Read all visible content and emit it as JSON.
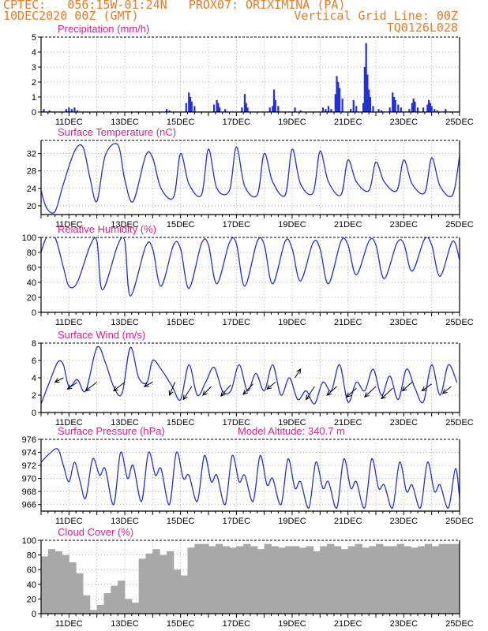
{
  "header": {
    "line1": "CPTEC:   056:15W-01:24N   PROX07: ORIXIMINA (PA)",
    "line2_left": "10DEC2020 00Z (GMT)",
    "line2_right": "Vertical Grid Line: 00Z",
    "line3_right": "TQ0126L028"
  },
  "colors": {
    "header": "#f07820",
    "title": "#e0208a",
    "line": "#2030e0",
    "bar": "#2030e0",
    "cloud": "#a8a8a8",
    "wind_vector": "#000000"
  },
  "x_tick_labels": [
    "11DEC",
    "13DEC",
    "15DEC",
    "17DEC",
    "19DEC",
    "21DEC",
    "23DEC",
    "25DEC"
  ],
  "chart_data": [
    {
      "type": "bar",
      "title": "Precipitation (mm/h)",
      "x_range_days": [
        10,
        25
      ],
      "ylim": [
        0,
        5
      ],
      "yticks": [
        0,
        1,
        2,
        3,
        4,
        5
      ],
      "x": [
        10.1,
        10.3,
        10.9,
        11.0,
        11.1,
        11.2,
        11.3,
        14.5,
        14.6,
        15.2,
        15.3,
        15.35,
        15.4,
        15.5,
        16.2,
        16.3,
        16.35,
        16.4,
        16.6,
        17.2,
        17.3,
        17.35,
        17.4,
        18.2,
        18.3,
        18.35,
        18.4,
        18.5,
        19.1,
        19.3,
        20.1,
        20.2,
        20.3,
        20.4,
        20.55,
        20.6,
        20.65,
        20.7,
        20.8,
        21.1,
        21.2,
        21.3,
        21.55,
        21.6,
        21.65,
        21.7,
        21.75,
        21.8,
        21.9,
        22.1,
        22.2,
        22.5,
        22.6,
        22.65,
        22.7,
        22.8,
        22.9,
        23.2,
        23.3,
        23.35,
        23.4,
        23.5,
        23.7,
        23.85,
        23.9,
        23.95,
        24.0,
        24.1,
        24.2,
        24.5
      ],
      "values": [
        0.2,
        0.1,
        0.2,
        0.3,
        0.2,
        0.3,
        0.1,
        0.2,
        0.1,
        0.6,
        1.3,
        1.0,
        0.7,
        0.4,
        0.5,
        0.8,
        0.6,
        0.3,
        0.2,
        0.3,
        1.2,
        0.6,
        0.3,
        0.3,
        0.4,
        1.5,
        0.8,
        0.4,
        0.3,
        0.1,
        0.3,
        0.2,
        0.4,
        0.2,
        1.2,
        2.4,
        2.0,
        1.6,
        0.9,
        0.2,
        0.8,
        0.4,
        0.6,
        3.0,
        4.6,
        2.5,
        1.5,
        1.0,
        0.4,
        0.2,
        0.1,
        0.3,
        1.3,
        1.0,
        0.8,
        0.5,
        0.3,
        0.2,
        0.6,
        0.9,
        0.7,
        0.3,
        0.3,
        0.5,
        0.8,
        0.6,
        0.4,
        0.2,
        0.1,
        0.2
      ]
    },
    {
      "type": "line",
      "title": "Surface Temperature (nC)",
      "x_range_days": [
        10,
        25
      ],
      "ylim": [
        18,
        35
      ],
      "yticks": [
        20,
        24,
        28,
        32
      ],
      "x": [
        10.0,
        10.2,
        10.5,
        10.8,
        11.2,
        11.5,
        11.75,
        12.0,
        12.3,
        12.75,
        13.0,
        13.3,
        13.75,
        14.0,
        14.3,
        14.75,
        15.0,
        15.3,
        15.75,
        16.0,
        16.3,
        16.75,
        17.0,
        17.3,
        17.75,
        18.0,
        18.3,
        18.75,
        19.0,
        19.3,
        19.75,
        20.0,
        20.3,
        20.75,
        21.0,
        21.3,
        21.75,
        22.0,
        22.3,
        22.75,
        23.0,
        23.3,
        23.75,
        24.0,
        24.3,
        24.75,
        25.0
      ],
      "values": [
        23.5,
        19.5,
        18.7,
        25.0,
        32.5,
        33.5,
        26.5,
        21.0,
        31.5,
        34.0,
        26.0,
        21.0,
        31.5,
        31.0,
        24.0,
        22.0,
        32.0,
        25.0,
        22.5,
        33.0,
        24.0,
        23.5,
        33.5,
        24.5,
        22.5,
        32.0,
        25.5,
        22.5,
        33.0,
        25.0,
        23.0,
        32.5,
        25.5,
        22.5,
        30.5,
        25.5,
        23.5,
        30.0,
        25.5,
        23.5,
        30.5,
        25.0,
        23.0,
        31.0,
        24.5,
        22.5,
        31.5
      ]
    },
    {
      "type": "line",
      "title": "Relative Humidity (%)",
      "x_range_days": [
        10,
        25
      ],
      "ylim": [
        0,
        100
      ],
      "yticks": [
        0,
        20,
        40,
        60,
        80,
        100
      ],
      "x": [
        10.0,
        10.2,
        10.5,
        10.8,
        11.0,
        11.3,
        11.75,
        12.0,
        12.2,
        12.75,
        13.0,
        13.2,
        13.75,
        14.0,
        14.3,
        14.75,
        15.0,
        15.3,
        15.75,
        16.0,
        16.3,
        16.75,
        17.0,
        17.3,
        17.75,
        18.0,
        18.3,
        18.75,
        19.0,
        19.3,
        19.75,
        20.0,
        20.3,
        20.75,
        21.0,
        21.3,
        21.75,
        22.0,
        22.3,
        22.75,
        23.0,
        23.3,
        23.75,
        24.0,
        24.3,
        24.75,
        25.0
      ],
      "values": [
        80,
        100,
        100,
        60,
        35,
        40,
        88,
        95,
        30,
        90,
        95,
        22,
        88,
        85,
        35,
        90,
        85,
        32,
        92,
        90,
        38,
        93,
        92,
        35,
        95,
        90,
        38,
        95,
        85,
        42,
        93,
        85,
        38,
        95,
        90,
        50,
        95,
        90,
        45,
        92,
        92,
        55,
        98,
        90,
        48,
        95,
        70
      ]
    },
    {
      "type": "line",
      "title": "Surface Wind (m/s)",
      "x_range_days": [
        10,
        25
      ],
      "ylim": [
        0,
        8
      ],
      "yticks": [
        0,
        2,
        4,
        6,
        8
      ],
      "x": [
        10.0,
        10.3,
        10.6,
        10.8,
        11.0,
        11.3,
        11.6,
        12.0,
        12.3,
        12.6,
        12.9,
        13.2,
        13.5,
        13.8,
        14.0,
        14.3,
        14.7,
        15.0,
        15.3,
        15.6,
        15.9,
        16.2,
        16.5,
        16.8,
        17.1,
        17.4,
        17.7,
        18.0,
        18.3,
        18.6,
        18.9,
        19.2,
        19.5,
        19.8,
        20.1,
        20.4,
        20.7,
        21.0,
        21.3,
        21.6,
        21.9,
        22.2,
        22.5,
        22.8,
        23.1,
        23.4,
        23.7,
        24.0,
        24.3,
        24.6,
        24.9
      ],
      "values": [
        1.0,
        3.5,
        5.8,
        5.5,
        3.0,
        3.8,
        2.5,
        7.5,
        5.8,
        3.0,
        2.2,
        7.5,
        4.0,
        3.5,
        6.0,
        5.0,
        3.0,
        1.5,
        5.5,
        2.0,
        3.5,
        5.2,
        2.5,
        2.5,
        5.5,
        2.5,
        4.5,
        2.5,
        5.5,
        2.0,
        4.0,
        1.5,
        2.5,
        1.0,
        3.5,
        2.5,
        5.5,
        1.2,
        3.5,
        2.5,
        5.0,
        2.0,
        4.2,
        1.5,
        5.0,
        2.8,
        1.2,
        5.5,
        2.0,
        5.5,
        3.5
      ],
      "wind_vector_x": [
        10.8,
        11.3,
        12.0,
        13.0,
        14.0,
        14.8,
        15.4,
        16.1,
        16.8,
        17.6,
        18.4,
        19.1,
        19.8,
        20.6,
        21.3,
        22.0,
        22.6,
        23.3,
        24.0,
        24.7
      ],
      "wind_vector_y": [
        4.0,
        3.5,
        3.5,
        3.5,
        3.5,
        3.5,
        3.0,
        3.0,
        3.2,
        3.3,
        3.5,
        4.0,
        3.0,
        3.0,
        2.8,
        3.0,
        2.8,
        3.5,
        3.3,
        3.0
      ],
      "wind_vector_dx": [
        -0.3,
        -0.35,
        -0.4,
        -0.4,
        -0.3,
        -0.2,
        -0.3,
        -0.3,
        -0.35,
        -0.35,
        -0.3,
        0.2,
        -0.3,
        -0.35,
        -0.35,
        -0.4,
        -0.4,
        -0.35,
        -0.35,
        -0.3
      ],
      "wind_vector_dy": [
        -0.5,
        -0.8,
        -1.0,
        -1.0,
        -0.5,
        -1.5,
        -1.5,
        -1.0,
        -1.3,
        -1.2,
        -0.8,
        1.0,
        -1.5,
        -1.0,
        -1.0,
        -1.2,
        -1.2,
        -1.0,
        -0.8,
        -0.8
      ]
    },
    {
      "type": "line",
      "title": "Surface Pressure (hPa)",
      "annotation": "Model Altitude: 340.7 m",
      "x_range_days": [
        10,
        25
      ],
      "ylim": [
        965,
        976
      ],
      "yticks": [
        966,
        968,
        970,
        972,
        974,
        976
      ],
      "x": [
        10.0,
        10.3,
        10.6,
        10.8,
        11.0,
        11.2,
        11.4,
        11.6,
        11.85,
        12.1,
        12.3,
        12.6,
        12.85,
        13.1,
        13.3,
        13.6,
        13.85,
        14.1,
        14.3,
        14.6,
        14.85,
        15.1,
        15.3,
        15.6,
        15.85,
        16.1,
        16.3,
        16.6,
        16.85,
        17.1,
        17.3,
        17.6,
        17.85,
        18.1,
        18.3,
        18.6,
        18.85,
        19.1,
        19.3,
        19.6,
        19.85,
        20.1,
        20.3,
        20.6,
        20.85,
        21.1,
        21.3,
        21.6,
        21.85,
        22.1,
        22.3,
        22.6,
        22.85,
        23.1,
        23.3,
        23.6,
        23.85,
        24.1,
        24.3,
        24.6,
        24.85,
        25.0
      ],
      "values": [
        972.5,
        973.8,
        974.5,
        972.0,
        969.5,
        972.5,
        969.5,
        967.0,
        973.0,
        970.5,
        971.5,
        966.0,
        974.0,
        970.0,
        972.0,
        966.5,
        974.0,
        970.5,
        971.5,
        966.0,
        974.0,
        970.0,
        970.5,
        966.5,
        973.5,
        969.5,
        970.5,
        966.0,
        973.5,
        969.5,
        970.5,
        966.5,
        973.5,
        969.0,
        970.0,
        966.0,
        973.0,
        968.5,
        969.5,
        965.5,
        972.5,
        968.5,
        969.5,
        965.5,
        973.0,
        968.5,
        969.5,
        965.5,
        973.0,
        968.5,
        969.0,
        965.5,
        972.5,
        968.0,
        969.0,
        965.5,
        972.5,
        968.0,
        969.0,
        965.5,
        971.5,
        967.0
      ]
    },
    {
      "type": "bar",
      "title": "Cloud Cover (%)",
      "x_range_days": [
        10,
        25
      ],
      "ylim": [
        0,
        100
      ],
      "yticks": [
        0,
        20,
        40,
        60,
        80,
        100
      ],
      "x": [
        10.0,
        10.25,
        10.5,
        10.75,
        11.0,
        11.25,
        11.5,
        11.75,
        12.0,
        12.25,
        12.5,
        12.75,
        13.0,
        13.25,
        13.5,
        13.75,
        14.0,
        14.25,
        14.5,
        14.75,
        15.0,
        15.25,
        15.5,
        15.75,
        16.0,
        16.25,
        16.5,
        16.75,
        17.0,
        17.25,
        17.5,
        17.75,
        18.0,
        18.25,
        18.5,
        18.75,
        19.0,
        19.25,
        19.5,
        19.75,
        20.0,
        20.25,
        20.5,
        20.75,
        21.0,
        21.25,
        21.5,
        21.75,
        22.0,
        22.25,
        22.5,
        22.75,
        23.0,
        23.25,
        23.5,
        23.75,
        24.0,
        24.25,
        24.5,
        24.75
      ],
      "values": [
        78,
        88,
        85,
        80,
        70,
        55,
        25,
        5,
        12,
        28,
        38,
        45,
        20,
        15,
        75,
        82,
        88,
        80,
        85,
        60,
        52,
        90,
        95,
        95,
        92,
        95,
        92,
        90,
        92,
        95,
        92,
        88,
        95,
        92,
        90,
        92,
        92,
        90,
        92,
        85,
        92,
        95,
        92,
        88,
        92,
        95,
        90,
        92,
        95,
        92,
        92,
        95,
        92,
        90,
        92,
        95,
        92,
        95,
        95,
        95
      ]
    }
  ]
}
